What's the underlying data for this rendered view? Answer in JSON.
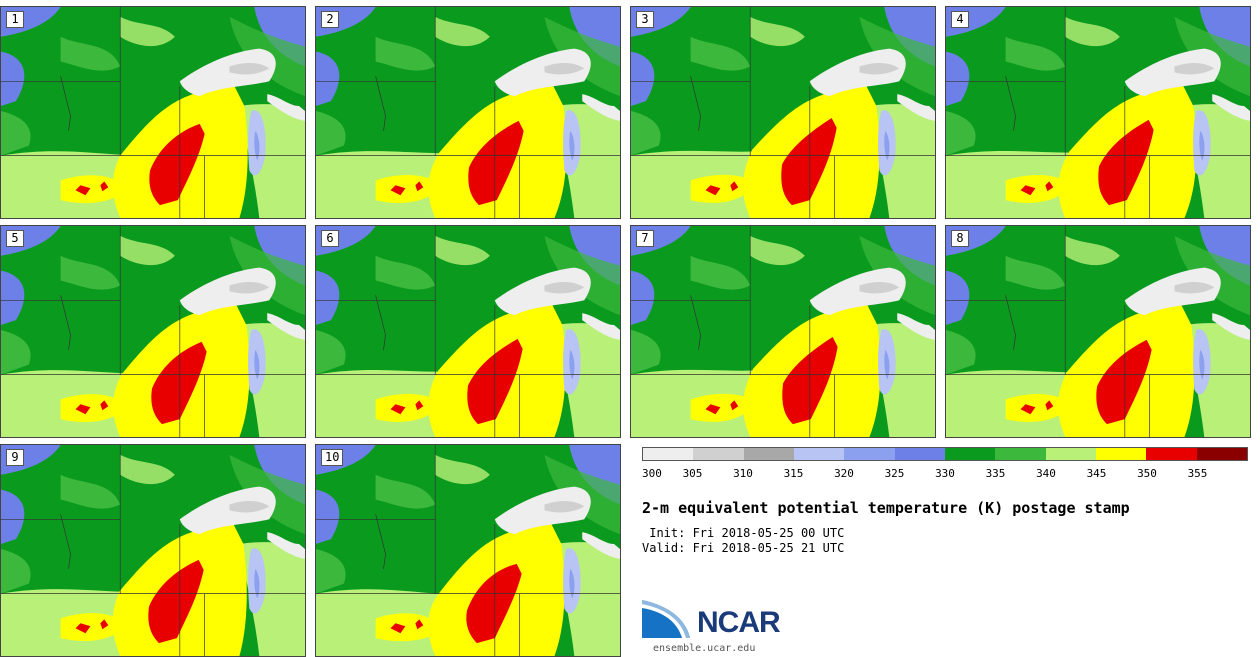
{
  "panels": [
    {
      "label": "1"
    },
    {
      "label": "2"
    },
    {
      "label": "3"
    },
    {
      "label": "4"
    },
    {
      "label": "5"
    },
    {
      "label": "6"
    },
    {
      "label": "7"
    },
    {
      "label": "8"
    },
    {
      "label": "9"
    },
    {
      "label": "10"
    }
  ],
  "colorbar": {
    "colors": [
      "#eeeeee",
      "#d0d0d0",
      "#a8a8a8",
      "#b8c4f4",
      "#8ca0f0",
      "#6c80e8",
      "#0a9a1e",
      "#3cb83c",
      "#b8f078",
      "#ffff00",
      "#e80000",
      "#8a0000"
    ],
    "ticks": [
      "300",
      "305",
      "310",
      "315",
      "320",
      "325",
      "330",
      "335",
      "340",
      "345",
      "350",
      "355"
    ]
  },
  "title": "2-m equivalent potential temperature (K) postage stamp",
  "init": " Init: Fri 2018-05-25 00 UTC",
  "valid": "Valid: Fri 2018-05-25 21 UTC",
  "logo": {
    "text": "NCAR",
    "url": "ensemble.ucar.edu"
  }
}
